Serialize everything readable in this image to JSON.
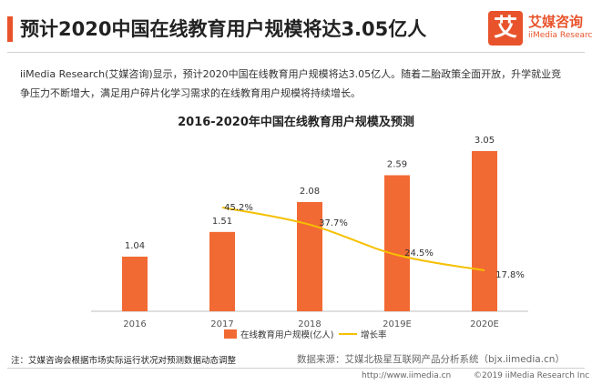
{
  "header": {
    "title": "预计2020中国在线教育用户规模将达3.05亿人",
    "logo_glyph": "艾",
    "logo_name": "艾媒咨询",
    "logo_en": "iiMedia Research"
  },
  "description": "iiMedia Research(艾媒咨询)显示，预计2020中国在线教育用户规模将达3.05亿人。随着二胎政策全面开放，升学就业竞争压力不断增大，满足用户碎片化学习需求的在线教育用户规模将持续增长。",
  "chart_data": {
    "type": "bar",
    "title": "2016-2020年中国在线教育用户规模及预测",
    "categories": [
      "2016",
      "2017",
      "2018",
      "2019E",
      "2020E"
    ],
    "series": [
      {
        "name": "在线教育用户规模(亿人)",
        "type": "bar",
        "color": "#f26a33",
        "values": [
          1.04,
          1.51,
          2.08,
          2.59,
          3.05
        ],
        "labels": [
          "1.04",
          "1.51",
          "2.08",
          "2.59",
          "3.05"
        ]
      },
      {
        "name": "增长率",
        "type": "line",
        "color": "#f5c000",
        "values": [
          null,
          45.2,
          37.7,
          24.5,
          17.8
        ],
        "labels": [
          "",
          "45.2%",
          "37.7%",
          "24.5%",
          "17.8%"
        ]
      }
    ],
    "bar_ylim": [
      0,
      3.5
    ],
    "line_ylim": [
      0,
      80
    ],
    "grid": false,
    "legend_position": "bottom"
  },
  "footer": {
    "note": "注：艾媒咨询会根据市场实际运行状况对预测数据动态调整",
    "source": "数据来源：艾媒北极星互联网产品分析系统（bjx.iimedia.cn）",
    "url": "http://www.iimedia.cn",
    "copyright": "©2019  iiMedia Research  Inc"
  }
}
